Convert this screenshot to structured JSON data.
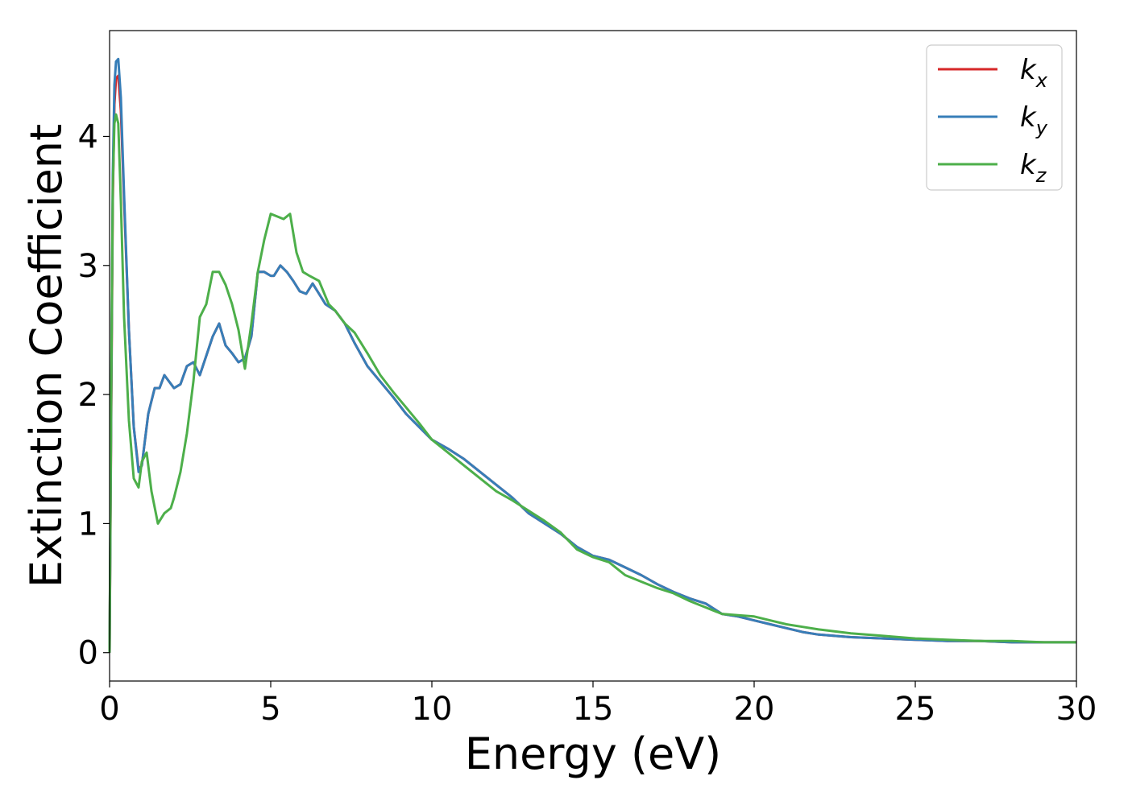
{
  "chart_data": {
    "type": "line",
    "title": "",
    "xlabel": "Energy (eV)",
    "ylabel": "Extinction Coefficient",
    "xlim": [
      0,
      30
    ],
    "ylim": [
      -0.22,
      4.82
    ],
    "xticks": [
      0,
      5,
      10,
      15,
      20,
      25,
      30
    ],
    "yticks": [
      0,
      1,
      2,
      3,
      4
    ],
    "grid": false,
    "legend_position": "top-right",
    "series": [
      {
        "name": "k_x",
        "legend_base": "k",
        "legend_sub": "x",
        "color": "#d62728",
        "x": [
          0,
          0.05,
          0.1,
          0.15,
          0.2,
          0.27,
          0.35,
          0.45,
          0.6,
          0.75,
          0.9,
          1.0,
          1.2,
          1.4,
          1.55,
          1.7,
          1.85,
          2.0,
          2.2,
          2.4,
          2.6,
          2.8,
          3.0,
          3.2,
          3.4,
          3.6,
          3.8,
          4.0,
          4.2,
          4.4,
          4.6,
          4.8,
          5.0,
          5.1,
          5.3,
          5.5,
          5.7,
          5.9,
          6.1,
          6.3,
          6.5,
          6.7,
          7.0,
          7.3,
          7.6,
          8.0,
          8.4,
          8.8,
          9.2,
          9.6,
          10.0,
          10.5,
          11.0,
          11.5,
          12.0,
          12.5,
          13.0,
          13.5,
          14.0,
          14.5,
          15.0,
          15.5,
          16.0,
          16.5,
          17.0,
          17.5,
          18.0,
          18.5,
          19.0,
          19.5,
          20.0,
          20.5,
          21.0,
          21.5,
          22.0,
          23.0,
          24.0,
          25.0,
          26.0,
          27.0,
          28.0,
          29.0,
          30.0
        ],
        "y": [
          0,
          1.8,
          3.5,
          4.25,
          4.45,
          4.47,
          4.2,
          3.5,
          2.5,
          1.75,
          1.42,
          1.45,
          1.85,
          2.05,
          2.05,
          2.15,
          2.1,
          2.05,
          2.08,
          2.22,
          2.25,
          2.15,
          2.3,
          2.45,
          2.55,
          2.38,
          2.32,
          2.25,
          2.28,
          2.45,
          2.95,
          2.95,
          2.92,
          2.92,
          3.0,
          2.95,
          2.88,
          2.8,
          2.78,
          2.86,
          2.78,
          2.7,
          2.65,
          2.55,
          2.4,
          2.22,
          2.1,
          1.98,
          1.85,
          1.75,
          1.65,
          1.58,
          1.5,
          1.4,
          1.3,
          1.2,
          1.08,
          1.0,
          0.92,
          0.82,
          0.75,
          0.72,
          0.66,
          0.6,
          0.53,
          0.47,
          0.42,
          0.38,
          0.3,
          0.28,
          0.25,
          0.22,
          0.19,
          0.16,
          0.14,
          0.12,
          0.11,
          0.1,
          0.09,
          0.09,
          0.08,
          0.08,
          0.08
        ]
      },
      {
        "name": "k_y",
        "legend_base": "k",
        "legend_sub": "y",
        "color": "#377eb8",
        "x": [
          0,
          0.05,
          0.1,
          0.15,
          0.2,
          0.27,
          0.35,
          0.45,
          0.6,
          0.75,
          0.9,
          1.0,
          1.2,
          1.4,
          1.55,
          1.7,
          1.85,
          2.0,
          2.2,
          2.4,
          2.6,
          2.8,
          3.0,
          3.2,
          3.4,
          3.6,
          3.8,
          4.0,
          4.2,
          4.4,
          4.6,
          4.8,
          5.0,
          5.1,
          5.3,
          5.5,
          5.7,
          5.9,
          6.1,
          6.3,
          6.5,
          6.7,
          7.0,
          7.3,
          7.6,
          8.0,
          8.4,
          8.8,
          9.2,
          9.6,
          10.0,
          10.5,
          11.0,
          11.5,
          12.0,
          12.5,
          13.0,
          13.5,
          14.0,
          14.5,
          15.0,
          15.5,
          16.0,
          16.5,
          17.0,
          17.5,
          18.0,
          18.5,
          19.0,
          19.5,
          20.0,
          20.5,
          21.0,
          21.5,
          22.0,
          23.0,
          24.0,
          25.0,
          26.0,
          27.0,
          28.0,
          29.0,
          30.0
        ],
        "y": [
          0,
          1.9,
          3.7,
          4.4,
          4.58,
          4.6,
          4.3,
          3.55,
          2.5,
          1.75,
          1.4,
          1.45,
          1.85,
          2.05,
          2.05,
          2.15,
          2.1,
          2.05,
          2.08,
          2.22,
          2.25,
          2.15,
          2.3,
          2.45,
          2.55,
          2.38,
          2.32,
          2.25,
          2.28,
          2.45,
          2.95,
          2.95,
          2.92,
          2.92,
          3.0,
          2.95,
          2.88,
          2.8,
          2.78,
          2.86,
          2.78,
          2.7,
          2.65,
          2.55,
          2.4,
          2.22,
          2.1,
          1.98,
          1.85,
          1.75,
          1.65,
          1.58,
          1.5,
          1.4,
          1.3,
          1.2,
          1.08,
          1.0,
          0.92,
          0.82,
          0.75,
          0.72,
          0.66,
          0.6,
          0.53,
          0.47,
          0.42,
          0.38,
          0.3,
          0.28,
          0.25,
          0.22,
          0.19,
          0.16,
          0.14,
          0.12,
          0.11,
          0.1,
          0.09,
          0.09,
          0.08,
          0.08,
          0.08
        ]
      },
      {
        "name": "k_z",
        "legend_base": "k",
        "legend_sub": "z",
        "color": "#4daf4a",
        "x": [
          0,
          0.05,
          0.1,
          0.15,
          0.2,
          0.27,
          0.35,
          0.45,
          0.6,
          0.75,
          0.9,
          1.0,
          1.15,
          1.3,
          1.5,
          1.7,
          1.9,
          2.0,
          2.2,
          2.4,
          2.6,
          2.8,
          3.0,
          3.2,
          3.4,
          3.6,
          3.8,
          4.0,
          4.2,
          4.4,
          4.6,
          4.8,
          5.0,
          5.2,
          5.4,
          5.6,
          5.8,
          6.0,
          6.2,
          6.5,
          6.8,
          7.0,
          7.3,
          7.6,
          8.0,
          8.4,
          8.8,
          9.2,
          9.6,
          10.0,
          10.5,
          11.0,
          11.5,
          12.0,
          12.5,
          13.0,
          13.5,
          14.0,
          14.5,
          15.0,
          15.5,
          16.0,
          16.5,
          17.0,
          17.5,
          18.0,
          18.5,
          19.0,
          19.5,
          20.0,
          20.5,
          21.0,
          21.5,
          22.0,
          23.0,
          24.0,
          25.0,
          26.0,
          27.0,
          28.0,
          29.0,
          30.0
        ],
        "y": [
          0,
          2.0,
          3.6,
          4.1,
          4.17,
          4.1,
          3.5,
          2.6,
          1.8,
          1.35,
          1.28,
          1.48,
          1.55,
          1.25,
          1.0,
          1.08,
          1.12,
          1.2,
          1.4,
          1.7,
          2.1,
          2.6,
          2.7,
          2.95,
          2.95,
          2.85,
          2.7,
          2.5,
          2.2,
          2.55,
          2.95,
          3.2,
          3.4,
          3.38,
          3.36,
          3.4,
          3.1,
          2.95,
          2.92,
          2.88,
          2.7,
          2.65,
          2.55,
          2.48,
          2.32,
          2.15,
          2.02,
          1.9,
          1.78,
          1.65,
          1.55,
          1.45,
          1.35,
          1.25,
          1.18,
          1.1,
          1.02,
          0.93,
          0.8,
          0.74,
          0.7,
          0.6,
          0.55,
          0.5,
          0.46,
          0.4,
          0.35,
          0.3,
          0.29,
          0.28,
          0.25,
          0.22,
          0.2,
          0.18,
          0.15,
          0.13,
          0.11,
          0.1,
          0.09,
          0.09,
          0.08,
          0.08
        ]
      }
    ]
  }
}
